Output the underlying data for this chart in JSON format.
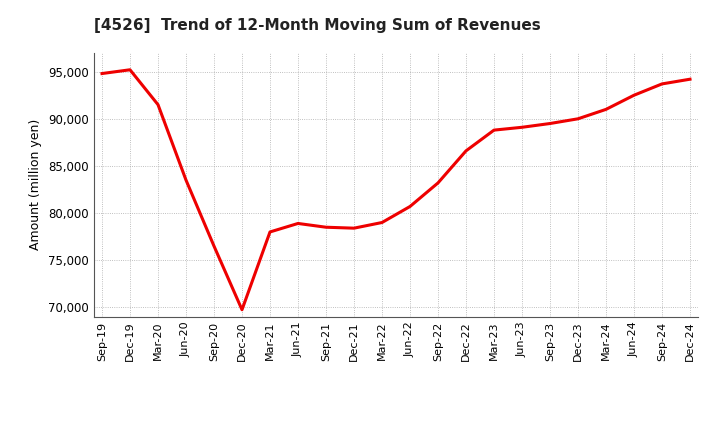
{
  "title": "[4526]  Trend of 12-Month Moving Sum of Revenues",
  "ylabel": "Amount (million yen)",
  "line_color": "#EE0000",
  "line_width": 2.2,
  "background_color": "#FFFFFF",
  "plot_bg_color": "#FFFFFF",
  "grid_color": "#888888",
  "ylim": [
    69000,
    97000
  ],
  "yticks": [
    70000,
    75000,
    80000,
    85000,
    90000,
    95000
  ],
  "x_labels": [
    "Sep-19",
    "Dec-19",
    "Mar-20",
    "Jun-20",
    "Sep-20",
    "Dec-20",
    "Mar-21",
    "Jun-21",
    "Sep-21",
    "Dec-21",
    "Mar-22",
    "Jun-22",
    "Sep-22",
    "Dec-22",
    "Mar-23",
    "Jun-23",
    "Sep-23",
    "Dec-23",
    "Mar-24",
    "Jun-24",
    "Sep-24",
    "Dec-24"
  ],
  "data_points": [
    94800,
    95200,
    91500,
    83500,
    76500,
    69750,
    78000,
    78900,
    78500,
    78400,
    79000,
    80700,
    83200,
    86600,
    88800,
    89100,
    89500,
    90000,
    91000,
    92500,
    93700,
    94200
  ]
}
